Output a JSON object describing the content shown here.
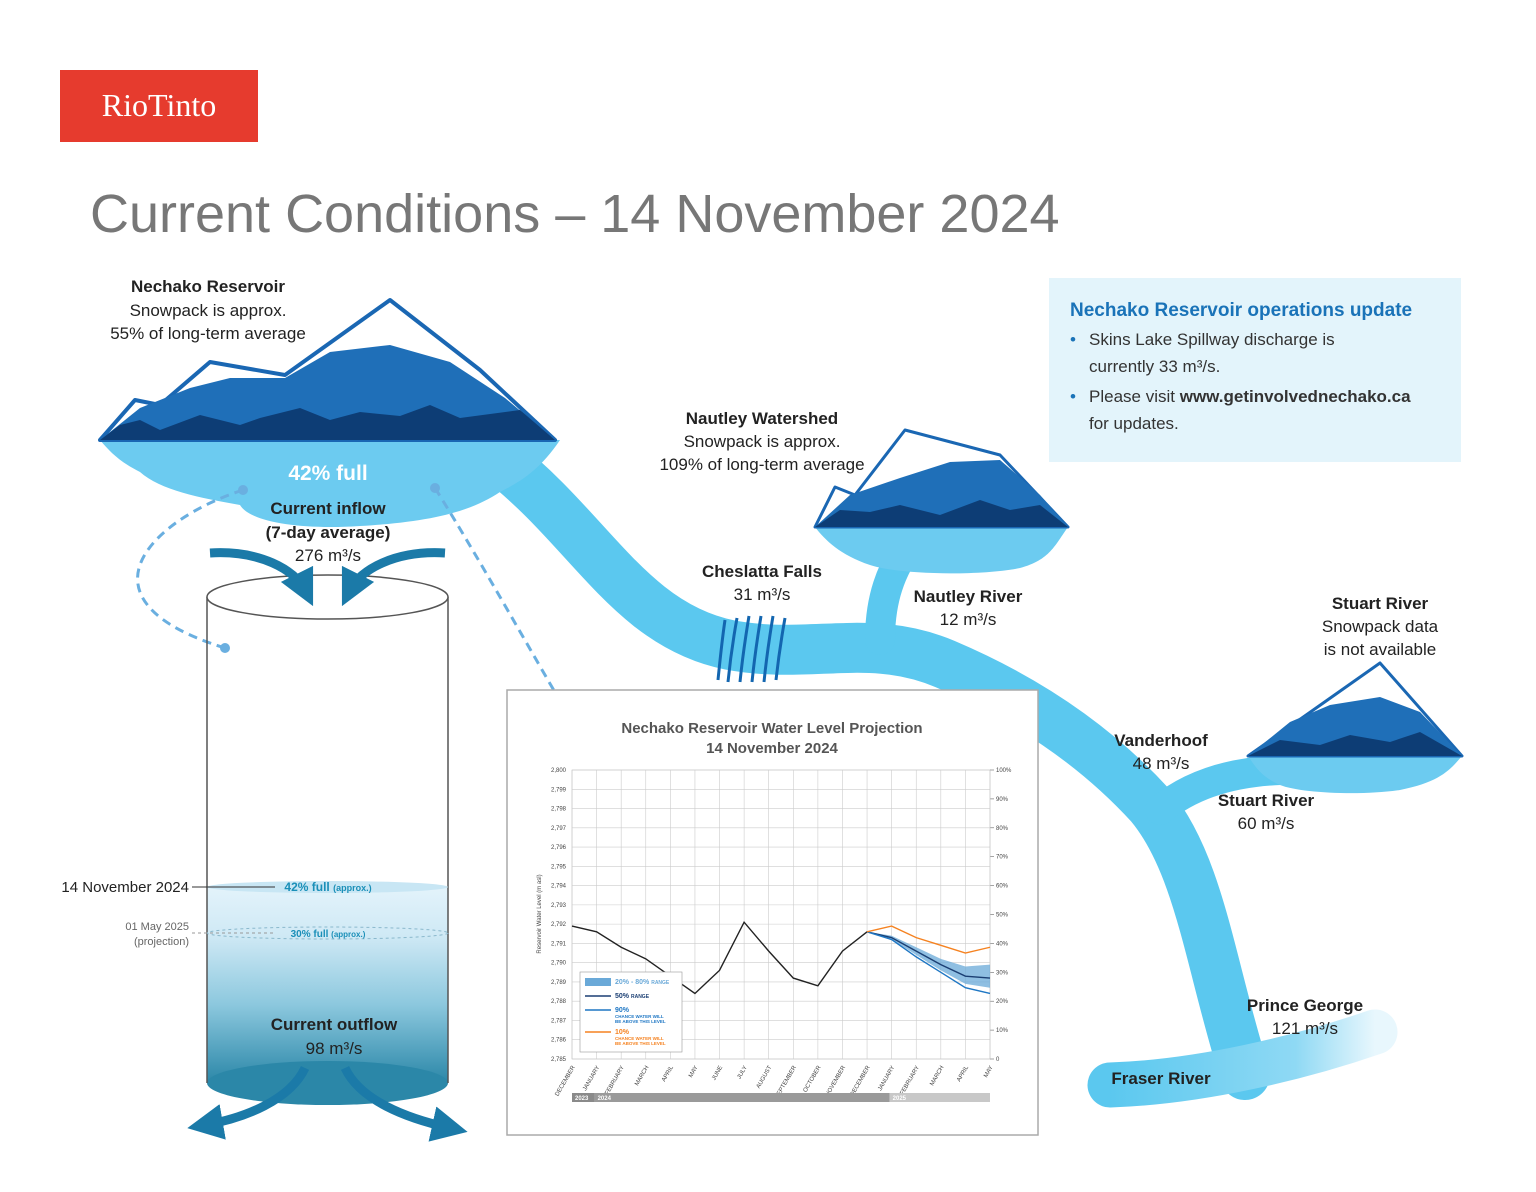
{
  "logo": "RioTinto",
  "title": "Current Conditions – 14 November 2024",
  "reservoir": {
    "name": "Nechako Reservoir",
    "lines": [
      "Snowpack is approx.",
      "55% of long-term average"
    ],
    "fill": "42% full"
  },
  "inflow": {
    "label": "Current inflow",
    "sub": "(7-day average)",
    "value": "276 m³/s"
  },
  "outflow": {
    "label": "Current outflow",
    "value": "98 m³/s"
  },
  "levels": [
    {
      "date": "14 November 2024",
      "level": "42% full",
      "note": "(approx.)"
    },
    {
      "date": "01 May 2025",
      "sub": "(projection)",
      "level": "30% full",
      "note": "(approx.)"
    }
  ],
  "locations": [
    {
      "name": "Nautley Watershed",
      "lines": [
        "Snowpack is approx.",
        "109% of long-term average"
      ]
    },
    {
      "name": "Cheslatta Falls",
      "lines": [
        "31 m³/s"
      ]
    },
    {
      "name": "Nautley River",
      "lines": [
        "12 m³/s"
      ]
    },
    {
      "name": "Stuart River",
      "lines": [
        "Snowpack data",
        "is not available"
      ]
    },
    {
      "name": "Vanderhoof",
      "lines": [
        "48 m³/s"
      ]
    },
    {
      "name": "Stuart River",
      "lines": [
        "60 m³/s"
      ]
    },
    {
      "name": "Prince George",
      "lines": [
        "121 m³/s"
      ]
    },
    {
      "name": "Fraser River",
      "lines": []
    }
  ],
  "update_box": {
    "title": "Nechako Reservoir operations update",
    "bullet1": [
      "Skins Lake Spillway discharge is",
      "currently 33 m³/s."
    ],
    "bullet2": {
      "lead": "Please visit",
      "link": "www.getinvolvednechako.ca",
      "tail": "for updates."
    }
  },
  "chart_data": {
    "type": "line",
    "title": "Nechako Reservoir Water Level Projection",
    "subtitle": "14 November 2024",
    "y_label": "Reservoir Water Level (m asl)",
    "categories": [
      "DECEMBER",
      "JANUARY",
      "FEBRUARY",
      "MARCH",
      "APRIL",
      "MAY",
      "JUNE",
      "JULY",
      "AUGUST",
      "SEPTEMBER",
      "OCTOBER",
      "NOVEMBER",
      "DECEMBER",
      "JANUARY",
      "FEBRUARY",
      "MARCH",
      "APRIL",
      "MAY"
    ],
    "years": [
      "2023",
      "2024",
      "2025"
    ],
    "ylim": [
      2785,
      2800
    ],
    "yticks": [
      {
        "value": 2785,
        "label": "2,785"
      },
      {
        "value": 2786,
        "label": "2,786"
      },
      {
        "value": 2787,
        "label": "2,787"
      },
      {
        "value": 2788,
        "label": "2,788"
      },
      {
        "value": 2789,
        "label": "2,789"
      },
      {
        "value": 2790,
        "label": "2,790"
      },
      {
        "value": 2791,
        "label": "2,791"
      },
      {
        "value": 2792,
        "label": "2,792"
      },
      {
        "value": 2793,
        "label": "2,793"
      },
      {
        "value": 2794,
        "label": "2,794"
      },
      {
        "value": 2795,
        "label": "2,795"
      },
      {
        "value": 2796,
        "label": "2,796"
      },
      {
        "value": 2797,
        "label": "2,797"
      },
      {
        "value": 2798,
        "label": "2,798"
      },
      {
        "value": 2799,
        "label": "2,799"
      },
      {
        "value": 2800,
        "label": "2,800"
      }
    ],
    "y2lim": [
      0,
      100
    ],
    "y2ticks": [
      0,
      {
        "value": 10,
        "label": "10%"
      },
      {
        "value": 20,
        "label": "20%"
      },
      {
        "value": 30,
        "label": "30%"
      },
      {
        "value": 40,
        "label": "40%"
      },
      {
        "value": 50,
        "label": "50%"
      },
      {
        "value": 60,
        "label": "60%"
      },
      {
        "value": 70,
        "label": "70%"
      },
      {
        "value": 80,
        "label": "80%"
      },
      {
        "value": 90,
        "label": "90%"
      },
      {
        "value": 100,
        "label": "100%"
      }
    ],
    "grid": true,
    "series": [
      {
        "name": "20% - 80%",
        "note": "RANGE",
        "color": "#6aa9d8",
        "low": [
          null,
          null,
          null,
          null,
          null,
          null,
          null,
          null,
          null,
          null,
          null,
          null,
          2791.6,
          2791.2,
          2790.4,
          2789.6,
          2788.9,
          2788.7
        ],
        "high": [
          null,
          null,
          null,
          null,
          null,
          null,
          null,
          null,
          null,
          null,
          null,
          null,
          2791.6,
          2791.4,
          2790.8,
          2790.2,
          2789.8,
          2789.9
        ]
      },
      {
        "color": "#222222",
        "values": [
          2791.9,
          2791.6,
          2790.8,
          2790.2,
          2789.3,
          2788.4,
          2789.6,
          2792.1,
          2790.6,
          2789.2,
          2788.8,
          2790.6,
          2791.6,
          null,
          null,
          null,
          null,
          null
        ]
      },
      {
        "name": "50%",
        "note": "RANGE",
        "color": "#1b3f73",
        "values": [
          null,
          null,
          null,
          null,
          null,
          null,
          null,
          null,
          null,
          null,
          null,
          null,
          2791.6,
          2791.3,
          2790.6,
          2789.9,
          2789.3,
          2789.2
        ]
      },
      {
        "name": "90%",
        "note": "CHANCE WATER WILL BE ABOVE THIS LEVEL",
        "color": "#1f77c4",
        "values": [
          null,
          null,
          null,
          null,
          null,
          null,
          null,
          null,
          null,
          null,
          null,
          null,
          2791.6,
          2791.2,
          2790.3,
          2789.5,
          2788.7,
          2788.4
        ]
      },
      {
        "name": "10%",
        "note": "CHANCE WATER WILL BE ABOVE THIS LEVEL",
        "color": "#f58220",
        "values": [
          null,
          null,
          null,
          null,
          null,
          null,
          null,
          null,
          null,
          null,
          null,
          null,
          2791.6,
          2791.9,
          2791.3,
          2790.9,
          2790.5,
          2790.8
        ]
      }
    ]
  }
}
